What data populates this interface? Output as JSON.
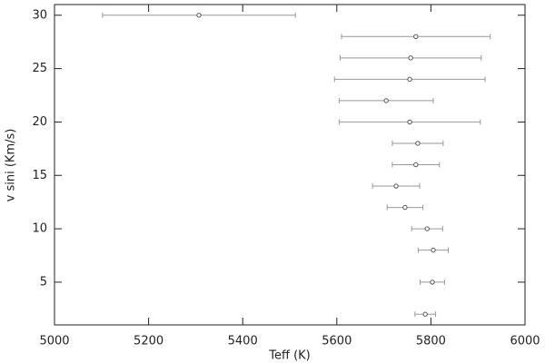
{
  "chart_data": {
    "type": "scatter",
    "x_label": "Teff (K)",
    "y_label": "v sini (Km/s)",
    "xlim": [
      5000,
      6000
    ],
    "ylim": [
      1,
      31
    ],
    "xticks": [
      5000,
      5200,
      5400,
      5600,
      5800,
      6000
    ],
    "yticks": [
      5,
      10,
      15,
      20,
      25,
      30
    ],
    "color": "#555555",
    "error_color": "#999999",
    "series": [
      {
        "x": [
          5307,
          5768,
          5757,
          5755,
          5705,
          5755,
          5772,
          5768,
          5726,
          5745,
          5792,
          5805,
          5803,
          5788
        ],
        "values": [
          30,
          28,
          26,
          24,
          22,
          20,
          18,
          16,
          14,
          12,
          10,
          8,
          5,
          2
        ],
        "xerr": [
          205,
          158,
          150,
          160,
          100,
          150,
          54,
          50,
          50,
          38,
          33,
          32,
          26,
          22
        ]
      }
    ]
  }
}
